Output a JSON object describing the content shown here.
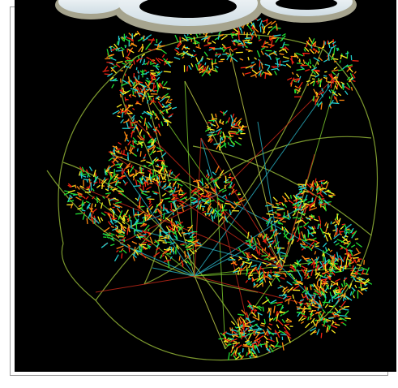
{
  "visualization": {
    "type": "hyperbolic-graph",
    "background_color": "#000000",
    "sphere_outline_color": "#9bbf3a",
    "edge_colors": [
      "#ccd94d",
      "#2ab6c8",
      "#cc2a1a",
      "#7fd02e"
    ],
    "cluster_colors": [
      "#22dd33",
      "#ffee22",
      "#ff8811",
      "#ee2211",
      "#22cccc"
    ]
  },
  "header": {
    "decoration": "cloud-banner",
    "cloud_fill": "#e6eef2",
    "cloud_shadow": "#a7a792"
  }
}
